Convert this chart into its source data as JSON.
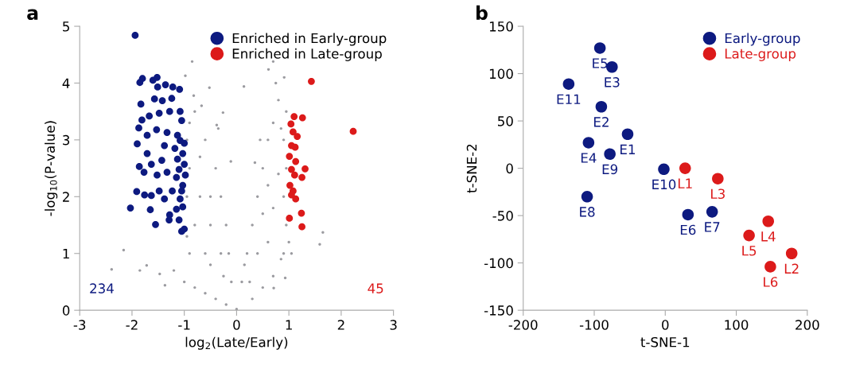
{
  "chart_data": [
    {
      "type": "scatter",
      "title": "a",
      "xlabel": "log$_{2}$(Late/Early)",
      "ylabel": "-log$_{10}$(P-value)",
      "xlim": [
        -3,
        3
      ],
      "xticks": [
        -3,
        -2,
        -1,
        0,
        1,
        2,
        3
      ],
      "ylim": [
        0,
        5
      ],
      "yticks": [
        0,
        1,
        2,
        3,
        4,
        5
      ],
      "legend": "top right",
      "marker": "circle",
      "grid": false,
      "annotations": [
        "234",
        "45"
      ],
      "series": [
        {
          "color": "#9b9ba0",
          "x": [
            -2.16,
            -2.39,
            -1.85,
            -1.72,
            -1.47,
            -1.37,
            -0.85,
            -0.98,
            -0.52,
            0.14,
            0.61,
            0.7,
            0.91,
            1.65,
            1.59,
            0.71,
            0.93,
            -0.82,
            -0.67,
            -0.26,
            -0.38,
            -0.11,
            -0.8,
            -1.0,
            -1.2,
            -0.6,
            -0.4,
            -0.2,
            0.0,
            -0.1,
            -0.3,
            -0.5,
            -0.7,
            -0.9,
            -0.95,
            -0.9,
            -0.6,
            -0.4,
            -0.3,
            -0.2,
            -0.15,
            -0.6,
            -0.8,
            -0.95,
            -0.5,
            -0.7,
            -0.9,
            -0.35,
            -0.8,
            -0.5,
            -0.95,
            -0.25,
            0.1,
            0.2,
            0.3,
            0.4,
            0.5,
            0.6,
            0.7,
            0.8,
            0.95,
            0.9,
            0.95,
            0.9,
            0.95,
            0.9,
            0.7,
            0.5,
            0.3,
            0.15,
            0.6,
            0.7,
            0.8,
            0.5,
            0.35,
            0.6,
            0.85,
            1.0,
            1.05,
            0.45,
            0.75,
            0.85,
            0.25,
            0.4
          ],
          "values": [
            1.06,
            0.72,
            0.7,
            0.79,
            0.64,
            0.44,
            4.38,
            4.13,
            3.92,
            3.94,
            4.24,
            4.38,
            4.1,
            1.37,
            1.16,
            0.39,
            0.57,
            3.78,
            3.6,
            3.48,
            3.26,
            2.62,
            0.4,
            0.5,
            0.7,
            0.3,
            0.2,
            0.1,
            0.02,
            0.5,
            1.0,
            1.5,
            2.0,
            2.5,
            3.0,
            3.3,
            3.0,
            2.5,
            2.0,
            1.5,
            1.0,
            1.0,
            1.5,
            2.0,
            2.0,
            2.7,
            1.0,
            3.2,
            3.5,
            0.8,
            1.3,
            0.6,
            0.5,
            1.0,
            1.5,
            2.0,
            2.5,
            3.0,
            3.3,
            3.7,
            3.5,
            3.0,
            2.5,
            2.0,
            1.5,
            1.0,
            0.6,
            0.4,
            0.2,
            0.8,
            1.2,
            1.8,
            2.4,
            1.7,
            2.6,
            2.2,
            0.9,
            1.2,
            1.0,
            3.0,
            4.0,
            3.2,
            0.5,
            1.0
          ]
        },
        {
          "name": "Enriched in Early-group",
          "color": "#0d1a80",
          "x": [
            -1.94,
            -1.85,
            -1.8,
            -1.6,
            -1.52,
            -1.51,
            -1.36,
            -1.22,
            -1.09,
            -1.83,
            -1.57,
            -1.42,
            -1.24,
            -1.08,
            -1.67,
            -1.81,
            -1.87,
            -1.48,
            -1.28,
            -1.05,
            -1.9,
            -1.71,
            -1.53,
            -1.33,
            -1.13,
            -1.0,
            -1.38,
            -1.18,
            -1.71,
            -1.86,
            -1.77,
            -1.63,
            -1.52,
            -1.43,
            -1.33,
            -1.13,
            -1.0,
            -1.15,
            -1.03,
            -1.91,
            -1.76,
            -1.63,
            -1.48,
            -1.38,
            -1.23,
            -1.08,
            -2.03,
            -1.65,
            -1.28,
            -1.15,
            -1.03,
            -1.55,
            -1.29,
            -1.1,
            -1.05,
            -1.0,
            -1.08,
            -1.03,
            -1.1,
            -0.98,
            -1.05
          ],
          "values": [
            4.84,
            4.01,
            4.08,
            4.05,
            4.1,
            3.93,
            3.97,
            3.93,
            3.89,
            3.63,
            3.72,
            3.69,
            3.73,
            3.5,
            3.42,
            3.35,
            3.21,
            3.47,
            3.5,
            3.34,
            2.93,
            3.08,
            3.18,
            3.13,
            3.08,
            2.94,
            2.9,
            2.85,
            2.76,
            2.53,
            2.43,
            2.57,
            2.38,
            2.64,
            2.43,
            2.66,
            2.57,
            2.34,
            2.2,
            2.09,
            2.03,
            2.02,
            2.1,
            1.96,
            2.1,
            1.96,
            1.8,
            1.77,
            1.68,
            1.78,
            1.82,
            1.51,
            1.59,
            1.59,
            1.39,
            1.43,
            2.99,
            2.76,
            2.48,
            2.38,
            2.1
          ]
        },
        {
          "name": "Enriched in Late-group",
          "color": "#dc1a1a",
          "x": [
            1.43,
            2.23,
            1.1,
            1.26,
            1.04,
            1.08,
            1.16,
            1.05,
            1.12,
            1.01,
            1.13,
            1.31,
            1.05,
            1.11,
            1.25,
            1.02,
            1.08,
            1.13,
            1.05,
            1.24,
            1.01,
            1.25
          ],
          "values": [
            4.03,
            3.15,
            3.41,
            3.39,
            3.28,
            3.14,
            3.06,
            2.9,
            2.87,
            2.71,
            2.62,
            2.49,
            2.48,
            2.38,
            2.34,
            2.2,
            2.1,
            1.96,
            2.03,
            1.71,
            1.62,
            1.47
          ]
        }
      ]
    },
    {
      "type": "scatter",
      "title": "b",
      "xlabel": "t-SNE-1",
      "ylabel": "t-SNE-2",
      "xlim": [
        -200,
        200
      ],
      "xticks": [
        -200,
        -100,
        0,
        100,
        200
      ],
      "ylim": [
        -150,
        150
      ],
      "yticks": [
        -150,
        -100,
        -50,
        0,
        50,
        100,
        150
      ],
      "legend": "top right",
      "marker": "circle",
      "grid": false,
      "series": [
        {
          "name": "Early-group",
          "color": "#0d1a80",
          "x": [
            -53,
            -90,
            -75,
            -108,
            -92,
            32,
            66,
            -110,
            -78,
            -2,
            -136
          ],
          "values": [
            36,
            65,
            107,
            27,
            127,
            -49,
            -46,
            -30,
            15,
            -1,
            89
          ],
          "value_labels": [
            "E1",
            "E2",
            "E3",
            "E4",
            "E5",
            "E6",
            "E7",
            "E8",
            "E9",
            "E10",
            "E11"
          ]
        },
        {
          "name": "Late-group",
          "color": "#dc1a1a",
          "x": [
            28,
            178,
            74,
            145,
            118,
            148
          ],
          "values": [
            0,
            -90,
            -11,
            -56,
            -71,
            -104
          ],
          "value_labels": [
            "L1",
            "L2",
            "L3",
            "L4",
            "L5",
            "L6"
          ]
        }
      ]
    }
  ]
}
